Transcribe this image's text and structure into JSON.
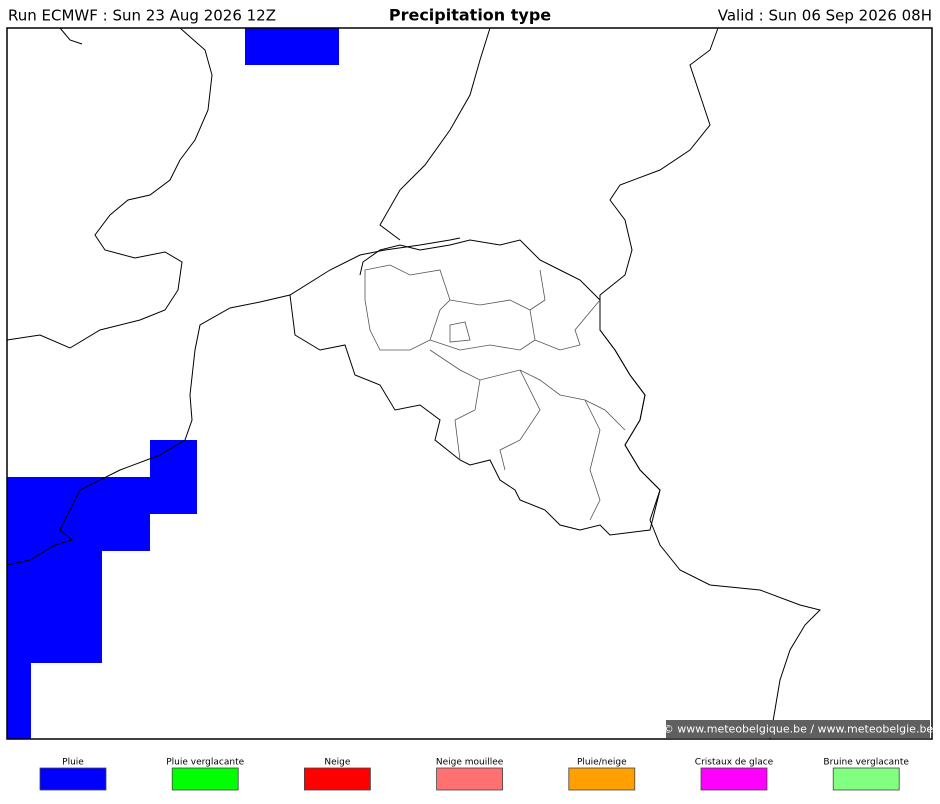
{
  "header": {
    "run": "Run ECMWF : Sun 23 Aug 2026 12Z",
    "title": "Precipitation type",
    "valid": "Valid : Sun 06 Sep 2026 08H"
  },
  "watermark": "© www.meteobelgique.be / www.meteobelgie.be",
  "legend": [
    {
      "label": "Pluie",
      "color": "#0000ff"
    },
    {
      "label": "Pluie verglacante",
      "color": "#00ff00"
    },
    {
      "label": "Neige",
      "color": "#ff0000"
    },
    {
      "label": "Neige mouillee",
      "color": "#ff7070"
    },
    {
      "label": "Pluie/neige",
      "color": "#ffa000"
    },
    {
      "label": "Cristaux de glace",
      "color": "#ff00ff"
    },
    {
      "label": "Bruine verglacante",
      "color": "#80ff80"
    }
  ]
}
